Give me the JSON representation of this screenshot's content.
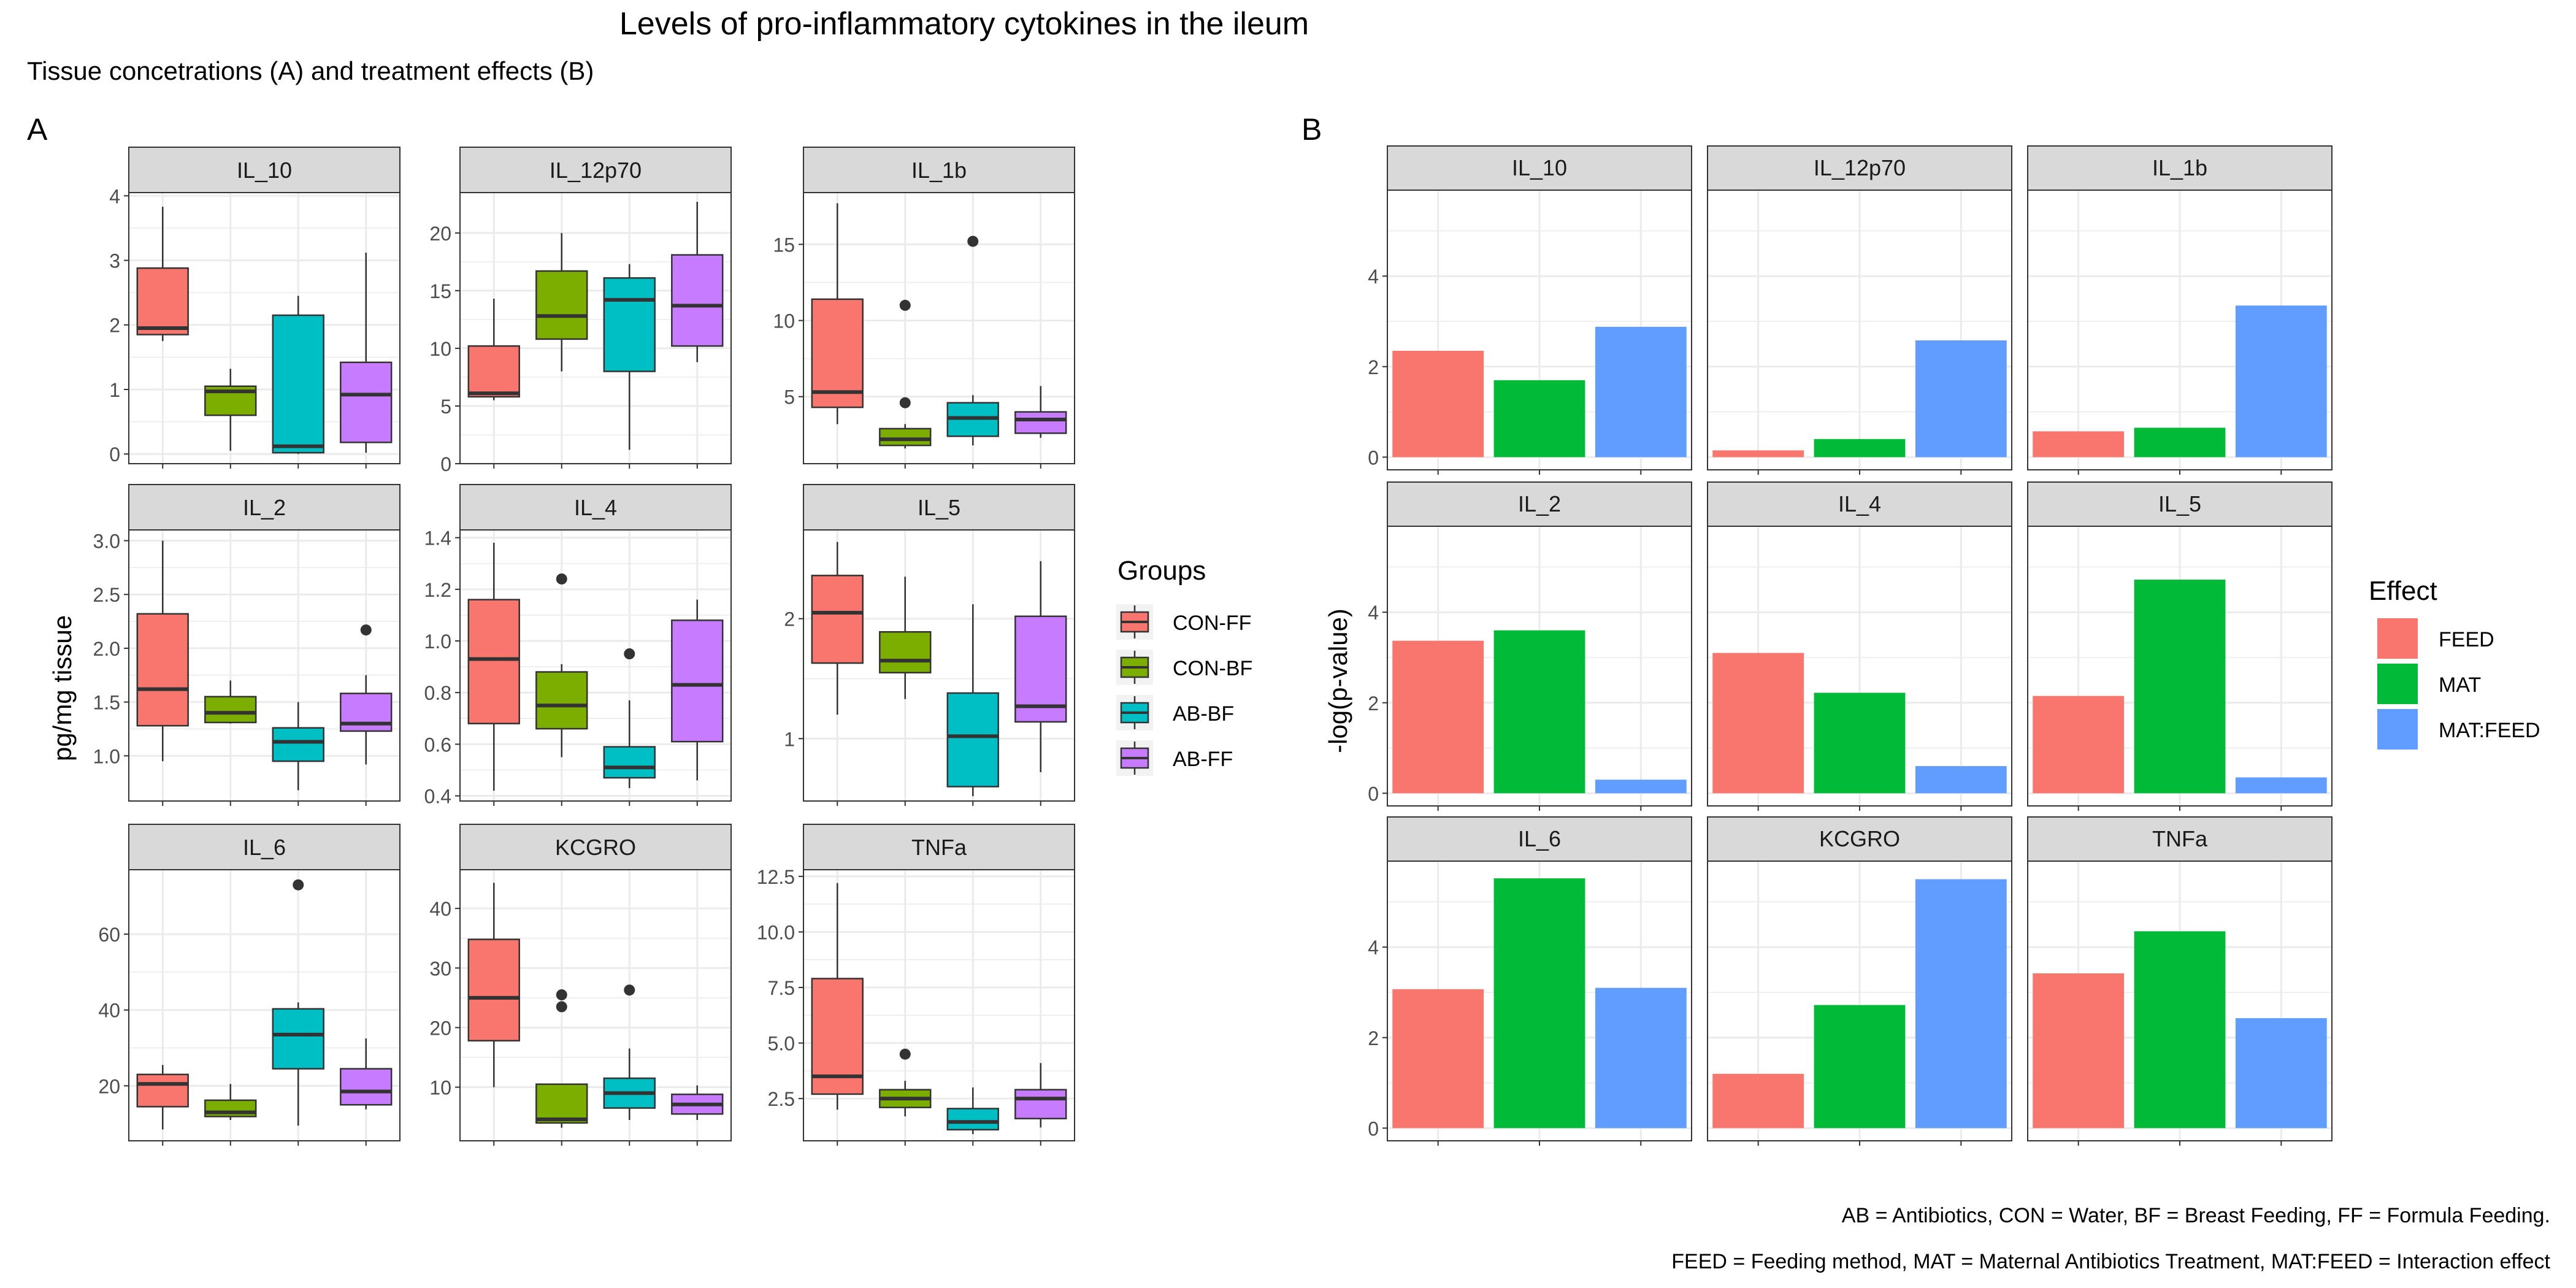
{
  "title": "Levels of pro-inflammatory cytokines in the ileum",
  "subtitle": "Tissue concetrations (A) and treatment effects (B)",
  "caption_lines": [
    "AB = Antibiotics, CON = Water, BF = Breast Feeding, FF = Formula Feeding.",
    "FEED = Feeding method, MAT = Maternal Antibiotics Treatment, MAT:FEED = Interaction effect"
  ],
  "colors": {
    "CON-FF": "#F8766D",
    "CON-BF": "#7CAE00",
    "AB-BF": "#00BFC4",
    "AB-FF": "#C77CFF",
    "FEED": "#F8766D",
    "MAT": "#00BA38",
    "MAT:FEED": "#619CFF",
    "strip": "#D9D9D9",
    "grid": "#EBEBEB",
    "border": "#333333"
  },
  "chart_data": [
    {
      "type": "boxplot",
      "tag": "A",
      "ylabel": "pg/mg tissue",
      "legend": {
        "title": "Groups",
        "position": "right",
        "entries": [
          "CON-FF",
          "CON-BF",
          "AB-BF",
          "AB-FF"
        ]
      },
      "groups": [
        "CON-FF",
        "CON-BF",
        "AB-BF",
        "AB-FF"
      ],
      "scales": "free_y",
      "grid": true,
      "panels": [
        {
          "name": "IL_10",
          "ylim": [
            -0.15,
            4.05
          ],
          "ticks": [
            0,
            1,
            2,
            3,
            4
          ],
          "tick_labels": [
            "0",
            "1",
            "2",
            "3",
            "4"
          ],
          "boxes": [
            {
              "min": 1.75,
              "q1": 1.85,
              "median": 1.95,
              "q3": 2.88,
              "max": 3.83,
              "outliers": []
            },
            {
              "min": 0.05,
              "q1": 0.6,
              "median": 0.97,
              "q3": 1.05,
              "max": 1.32,
              "outliers": []
            },
            {
              "min": 0.0,
              "q1": 0.02,
              "median": 0.12,
              "q3": 2.15,
              "max": 2.45,
              "outliers": []
            },
            {
              "min": 0.02,
              "q1": 0.18,
              "median": 0.92,
              "q3": 1.42,
              "max": 3.12,
              "outliers": []
            }
          ]
        },
        {
          "name": "IL_12p70",
          "ylim": [
            0,
            23.5
          ],
          "ticks": [
            0,
            5,
            10,
            15,
            20
          ],
          "tick_labels": [
            "0",
            "5",
            "10",
            "15",
            "20"
          ],
          "boxes": [
            {
              "min": 5.5,
              "q1": 5.8,
              "median": 6.1,
              "q3": 10.2,
              "max": 14.3,
              "outliers": []
            },
            {
              "min": 8.0,
              "q1": 10.8,
              "median": 12.8,
              "q3": 16.7,
              "max": 20.0,
              "outliers": []
            },
            {
              "min": 1.2,
              "q1": 8.0,
              "median": 14.2,
              "q3": 16.1,
              "max": 17.3,
              "outliers": []
            },
            {
              "min": 8.8,
              "q1": 10.2,
              "median": 13.7,
              "q3": 18.1,
              "max": 22.7,
              "outliers": []
            }
          ]
        },
        {
          "name": "IL_1b",
          "ylim": [
            0.6,
            18.4
          ],
          "ticks": [
            5,
            10,
            15
          ],
          "tick_labels": [
            "5",
            "10",
            "15"
          ],
          "boxes": [
            {
              "min": 3.2,
              "q1": 4.3,
              "median": 5.3,
              "q3": 11.4,
              "max": 17.7,
              "outliers": []
            },
            {
              "min": 1.6,
              "q1": 1.8,
              "median": 2.2,
              "q3": 2.9,
              "max": 3.2,
              "outliers": [
                4.6,
                11.0
              ]
            },
            {
              "min": 1.8,
              "q1": 2.4,
              "median": 3.6,
              "q3": 4.6,
              "max": 5.1,
              "outliers": [
                15.2
              ]
            },
            {
              "min": 2.3,
              "q1": 2.6,
              "median": 3.5,
              "q3": 4.0,
              "max": 5.7,
              "outliers": []
            }
          ]
        },
        {
          "name": "IL_2",
          "ylim": [
            0.58,
            3.1
          ],
          "ticks": [
            1.0,
            1.5,
            2.0,
            2.5,
            3.0
          ],
          "tick_labels": [
            "1.0",
            "1.5",
            "2.0",
            "2.5",
            "3.0"
          ],
          "boxes": [
            {
              "min": 0.95,
              "q1": 1.28,
              "median": 1.62,
              "q3": 2.32,
              "max": 3.0,
              "outliers": []
            },
            {
              "min": 1.3,
              "q1": 1.31,
              "median": 1.4,
              "q3": 1.55,
              "max": 1.7,
              "outliers": []
            },
            {
              "min": 0.68,
              "q1": 0.95,
              "median": 1.13,
              "q3": 1.26,
              "max": 1.5,
              "outliers": []
            },
            {
              "min": 0.92,
              "q1": 1.23,
              "median": 1.3,
              "q3": 1.58,
              "max": 1.75,
              "outliers": [
                2.17
              ]
            }
          ]
        },
        {
          "name": "IL_4",
          "ylim": [
            0.38,
            1.43
          ],
          "ticks": [
            0.4,
            0.6,
            0.8,
            1.0,
            1.2,
            1.4
          ],
          "tick_labels": [
            "0.4",
            "0.6",
            "0.8",
            "1.0",
            "1.2",
            "1.4"
          ],
          "boxes": [
            {
              "min": 0.42,
              "q1": 0.68,
              "median": 0.93,
              "q3": 1.16,
              "max": 1.38,
              "outliers": []
            },
            {
              "min": 0.55,
              "q1": 0.66,
              "median": 0.75,
              "q3": 0.88,
              "max": 0.91,
              "outliers": [
                1.24
              ]
            },
            {
              "min": 0.43,
              "q1": 0.47,
              "median": 0.51,
              "q3": 0.59,
              "max": 0.77,
              "outliers": [
                0.95
              ]
            },
            {
              "min": 0.46,
              "q1": 0.61,
              "median": 0.83,
              "q3": 1.08,
              "max": 1.16,
              "outliers": []
            }
          ]
        },
        {
          "name": "IL_5",
          "ylim": [
            0.48,
            2.74
          ],
          "ticks": [
            1,
            2
          ],
          "tick_labels": [
            "1",
            "2"
          ],
          "boxes": [
            {
              "min": 1.2,
              "q1": 1.63,
              "median": 2.05,
              "q3": 2.36,
              "max": 2.64,
              "outliers": []
            },
            {
              "min": 1.33,
              "q1": 1.55,
              "median": 1.65,
              "q3": 1.89,
              "max": 2.35,
              "outliers": []
            },
            {
              "min": 0.52,
              "q1": 0.6,
              "median": 1.02,
              "q3": 1.38,
              "max": 2.12,
              "outliers": []
            },
            {
              "min": 0.72,
              "q1": 1.14,
              "median": 1.27,
              "q3": 2.02,
              "max": 2.48,
              "outliers": []
            }
          ]
        },
        {
          "name": "IL_6",
          "ylim": [
            5.5,
            77
          ],
          "ticks": [
            20,
            40,
            60
          ],
          "tick_labels": [
            "20",
            "40",
            "60"
          ],
          "boxes": [
            {
              "min": 8.5,
              "q1": 14.5,
              "median": 20.5,
              "q3": 23.0,
              "max": 25.5,
              "outliers": []
            },
            {
              "min": 11.0,
              "q1": 11.9,
              "median": 13.0,
              "q3": 16.2,
              "max": 20.5,
              "outliers": []
            },
            {
              "min": 9.5,
              "q1": 24.5,
              "median": 33.5,
              "q3": 40.3,
              "max": 42.0,
              "outliers": [
                73.0
              ]
            },
            {
              "min": 13.8,
              "q1": 15.0,
              "median": 18.5,
              "q3": 24.5,
              "max": 32.5,
              "outliers": []
            }
          ]
        },
        {
          "name": "KCGRO",
          "ylim": [
            1,
            46.5
          ],
          "ticks": [
            10,
            20,
            30,
            40
          ],
          "tick_labels": [
            "10",
            "20",
            "30",
            "40"
          ],
          "boxes": [
            {
              "min": 10.0,
              "q1": 17.8,
              "median": 25.0,
              "q3": 34.8,
              "max": 44.3,
              "outliers": []
            },
            {
              "min": 3.2,
              "q1": 4.0,
              "median": 4.6,
              "q3": 10.5,
              "max": 10.5,
              "outliers": [
                23.5,
                25.5
              ]
            },
            {
              "min": 4.5,
              "q1": 6.5,
              "median": 9.0,
              "q3": 11.5,
              "max": 16.5,
              "outliers": [
                26.3
              ]
            },
            {
              "min": 4.5,
              "q1": 5.5,
              "median": 7.1,
              "q3": 8.8,
              "max": 10.3,
              "outliers": []
            }
          ]
        },
        {
          "name": "TNFa",
          "ylim": [
            0.6,
            12.8
          ],
          "ticks": [
            2.5,
            5.0,
            7.5,
            10.0,
            12.5
          ],
          "tick_labels": [
            "2.5",
            "5.0",
            "7.5",
            "10.0",
            "12.5"
          ],
          "boxes": [
            {
              "min": 2.0,
              "q1": 2.7,
              "median": 3.5,
              "q3": 7.9,
              "max": 12.2,
              "outliers": []
            },
            {
              "min": 1.7,
              "q1": 2.1,
              "median": 2.5,
              "q3": 2.9,
              "max": 3.3,
              "outliers": [
                4.5
              ]
            },
            {
              "min": 0.9,
              "q1": 1.1,
              "median": 1.45,
              "q3": 2.05,
              "max": 3.0,
              "outliers": []
            },
            {
              "min": 1.2,
              "q1": 1.6,
              "median": 2.5,
              "q3": 2.9,
              "max": 4.1,
              "outliers": []
            }
          ]
        }
      ]
    },
    {
      "type": "bar",
      "tag": "B",
      "ylabel": "-log(p-value)",
      "legend": {
        "title": "Effect",
        "position": "right",
        "entries": [
          "FEED",
          "MAT",
          "MAT:FEED"
        ]
      },
      "categories": [
        "FEED",
        "MAT",
        "MAT:FEED"
      ],
      "scales": "free_y",
      "grid": true,
      "panels": [
        {
          "name": "IL_10",
          "ylim": [
            -0.28,
            5.9
          ],
          "ticks": [
            0,
            2,
            4
          ],
          "tick_labels": [
            "0",
            "2",
            "4"
          ],
          "values": [
            2.35,
            1.7,
            2.88
          ]
        },
        {
          "name": "IL_12p70",
          "ylim": [
            -0.28,
            5.9
          ],
          "ticks": [
            0,
            2,
            4
          ],
          "tick_labels": [
            "0",
            "2",
            "4"
          ],
          "values": [
            0.15,
            0.4,
            2.58
          ]
        },
        {
          "name": "IL_1b",
          "ylim": [
            -0.28,
            5.9
          ],
          "ticks": [
            0,
            2,
            4
          ],
          "tick_labels": [
            "0",
            "2",
            "4"
          ],
          "values": [
            0.57,
            0.65,
            3.35
          ]
        },
        {
          "name": "IL_2",
          "ylim": [
            -0.28,
            5.9
          ],
          "ticks": [
            0,
            2,
            4
          ],
          "tick_labels": [
            "0",
            "2",
            "4"
          ],
          "values": [
            3.37,
            3.6,
            0.3
          ]
        },
        {
          "name": "IL_4",
          "ylim": [
            -0.28,
            5.9
          ],
          "ticks": [
            0,
            2,
            4
          ],
          "tick_labels": [
            "0",
            "2",
            "4"
          ],
          "values": [
            3.1,
            2.22,
            0.6
          ]
        },
        {
          "name": "IL_5",
          "ylim": [
            -0.28,
            5.9
          ],
          "ticks": [
            0,
            2,
            4
          ],
          "tick_labels": [
            "0",
            "2",
            "4"
          ],
          "values": [
            2.15,
            4.72,
            0.35
          ]
        },
        {
          "name": "IL_6",
          "ylim": [
            -0.28,
            5.9
          ],
          "ticks": [
            0,
            2,
            4
          ],
          "tick_labels": [
            "0",
            "2",
            "4"
          ],
          "values": [
            3.07,
            5.52,
            3.1
          ]
        },
        {
          "name": "KCGRO",
          "ylim": [
            -0.28,
            5.9
          ],
          "ticks": [
            0,
            2,
            4
          ],
          "tick_labels": [
            "0",
            "2",
            "4"
          ],
          "values": [
            1.2,
            2.72,
            5.5
          ]
        },
        {
          "name": "TNFa",
          "ylim": [
            -0.28,
            5.9
          ],
          "ticks": [
            0,
            2,
            4
          ],
          "tick_labels": [
            "0",
            "2",
            "4"
          ],
          "values": [
            3.42,
            4.35,
            2.43
          ]
        }
      ]
    }
  ]
}
